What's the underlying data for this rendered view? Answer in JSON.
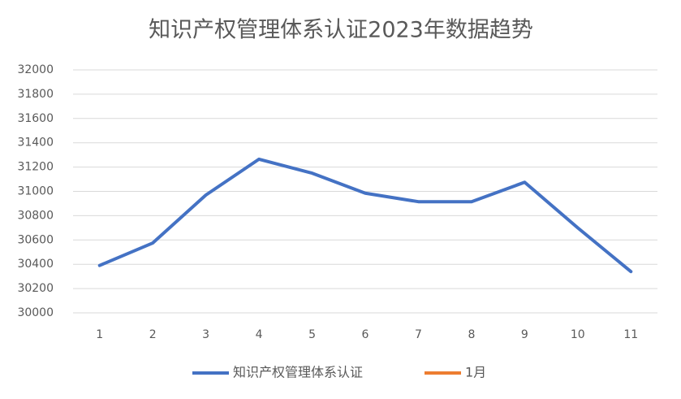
{
  "chart_data": {
    "type": "line",
    "title": "知识产权管理体系认证2023年数据趋势",
    "categories": [
      "1",
      "2",
      "3",
      "4",
      "5",
      "6",
      "7",
      "8",
      "9",
      "10",
      "11"
    ],
    "series": [
      {
        "name": "知识产权管理体系认证",
        "color": "#4472c4",
        "values": [
          30390,
          30575,
          30970,
          31265,
          31150,
          30985,
          30915,
          30915,
          31075,
          30700,
          30340
        ]
      },
      {
        "name": "1月",
        "color": "#ed7d31",
        "values": [
          null,
          null,
          null,
          null,
          null,
          null,
          null,
          null,
          null,
          null,
          null
        ]
      }
    ],
    "ylim": [
      30000,
      32000
    ],
    "yticks": [
      30000,
      30200,
      30400,
      30600,
      30800,
      31000,
      31200,
      31400,
      31600,
      31800,
      32000
    ],
    "grid": true,
    "legend": "bottom"
  }
}
